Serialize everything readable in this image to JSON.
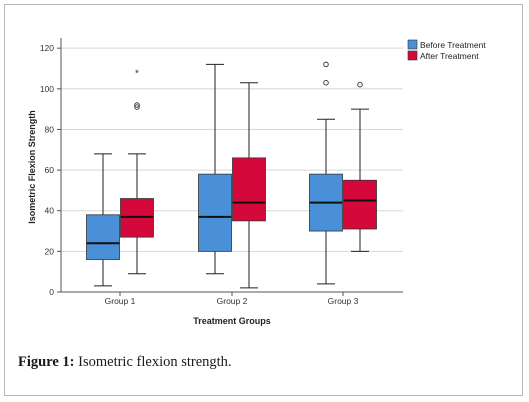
{
  "caption": {
    "label": "Figure 1:",
    "text": "Isometric flexion strength."
  },
  "colors": {
    "before": "#4a90d9",
    "after": "#d4083a",
    "grid": "#d8d8d8",
    "axis": "#555555"
  },
  "chart_data": {
    "type": "box",
    "title": "",
    "xlabel": "Treatment Groups",
    "ylabel": "Isometric Flexion Strength",
    "ylim": [
      0,
      125
    ],
    "yticks": [
      0,
      20,
      40,
      60,
      80,
      100,
      120
    ],
    "grid": true,
    "legend_position": "top-right",
    "categories": [
      "Group 1",
      "Group 2",
      "Group 3"
    ],
    "series": [
      {
        "name": "Before Treatment",
        "boxes": [
          {
            "min": 3,
            "q1": 16,
            "median": 24,
            "q3": 38,
            "max": 68,
            "outliers": [],
            "extremes": []
          },
          {
            "min": 9,
            "q1": 20,
            "median": 37,
            "q3": 58,
            "max": 112,
            "outliers": [],
            "extremes": []
          },
          {
            "min": 4,
            "q1": 30,
            "median": 44,
            "q3": 58,
            "max": 85,
            "outliers": [
              103,
              112
            ],
            "extremes": []
          }
        ]
      },
      {
        "name": "After Treatment",
        "boxes": [
          {
            "min": 9,
            "q1": 27,
            "median": 37,
            "q3": 46,
            "max": 68,
            "outliers": [
              91,
              92
            ],
            "extremes": [
              108
            ]
          },
          {
            "min": 2,
            "q1": 35,
            "median": 44,
            "q3": 66,
            "max": 103,
            "outliers": [],
            "extremes": []
          },
          {
            "min": 20,
            "q1": 31,
            "median": 45,
            "q3": 55,
            "max": 90,
            "outliers": [
              102
            ],
            "extremes": []
          }
        ]
      }
    ]
  }
}
